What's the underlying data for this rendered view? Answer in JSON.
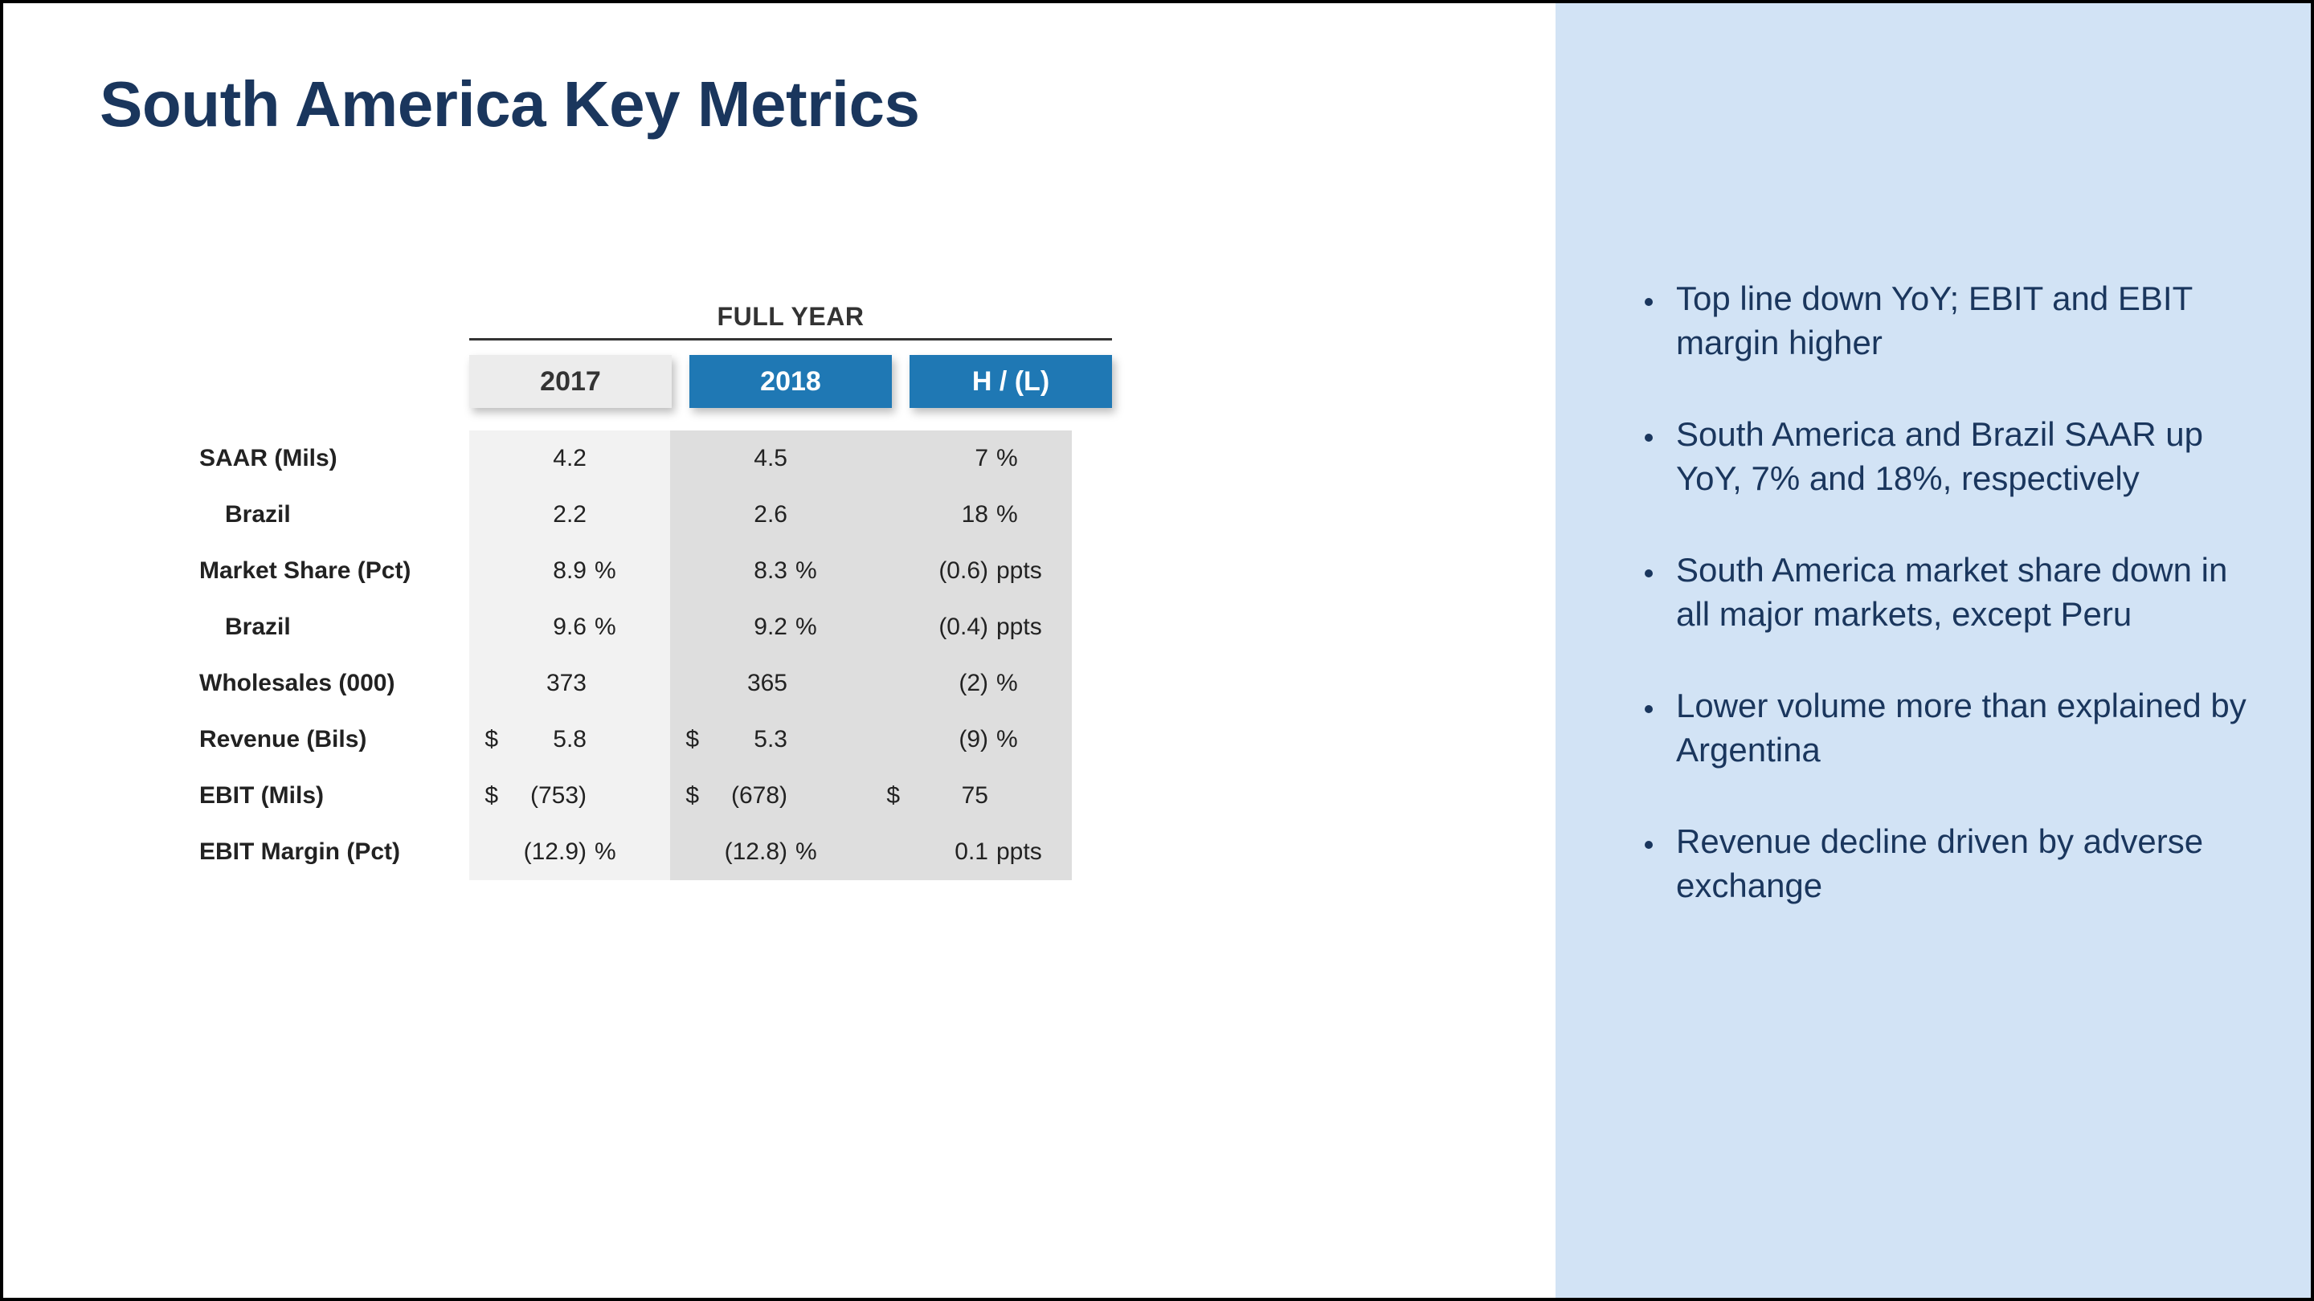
{
  "title": "South America Key Metrics",
  "colors": {
    "title_text": "#1a365d",
    "sidebar_bg": "#d2e3f5",
    "header_light_bg": "#ececec",
    "header_dark_bg": "#1f78b4",
    "header_dark_text": "#ffffff",
    "col_2017_bg": "#f2f2f2",
    "col_2018_bg": "#dedede",
    "col_hl_bg": "#dedede",
    "page_border": "#000000"
  },
  "table": {
    "type": "table",
    "full_year_label": "FULL YEAR",
    "col_headers": [
      "2017",
      "2018",
      "H / (L)"
    ],
    "rows": [
      {
        "label": "SAAR (Mils)",
        "indent": false,
        "c1": {
          "pre": "",
          "num": "4.2",
          "suf": ""
        },
        "c2": {
          "pre": "",
          "num": "4.5",
          "suf": ""
        },
        "c3": {
          "pre": "",
          "num": "7",
          "suf": "%"
        }
      },
      {
        "label": "Brazil",
        "indent": true,
        "c1": {
          "pre": "",
          "num": "2.2",
          "suf": ""
        },
        "c2": {
          "pre": "",
          "num": "2.6",
          "suf": ""
        },
        "c3": {
          "pre": "",
          "num": "18",
          "suf": "%"
        }
      },
      {
        "label": "Market Share (Pct)",
        "indent": false,
        "c1": {
          "pre": "",
          "num": "8.9",
          "suf": "%"
        },
        "c2": {
          "pre": "",
          "num": "8.3",
          "suf": "%"
        },
        "c3": {
          "pre": "",
          "num": "(0.6)",
          "suf": "ppts"
        }
      },
      {
        "label": "Brazil",
        "indent": true,
        "c1": {
          "pre": "",
          "num": "9.6",
          "suf": "%"
        },
        "c2": {
          "pre": "",
          "num": "9.2",
          "suf": "%"
        },
        "c3": {
          "pre": "",
          "num": "(0.4)",
          "suf": "ppts"
        }
      },
      {
        "label": "Wholesales (000)",
        "indent": false,
        "c1": {
          "pre": "",
          "num": "373",
          "suf": ""
        },
        "c2": {
          "pre": "",
          "num": "365",
          "suf": ""
        },
        "c3": {
          "pre": "",
          "num": "(2)",
          "suf": "%"
        }
      },
      {
        "label": "Revenue (Bils)",
        "indent": false,
        "c1": {
          "pre": "$",
          "num": "5.8",
          "suf": ""
        },
        "c2": {
          "pre": "$",
          "num": "5.3",
          "suf": ""
        },
        "c3": {
          "pre": "",
          "num": "(9)",
          "suf": "%"
        }
      },
      {
        "label": "EBIT (Mils)",
        "indent": false,
        "c1": {
          "pre": "$",
          "num": "(753)",
          "suf": ""
        },
        "c2": {
          "pre": "$",
          "num": "(678)",
          "suf": ""
        },
        "c3": {
          "pre": "$",
          "num": "75",
          "suf": ""
        }
      },
      {
        "label": "EBIT Margin (Pct)",
        "indent": false,
        "c1": {
          "pre": "",
          "num": "(12.9)",
          "suf": "%"
        },
        "c2": {
          "pre": "",
          "num": "(12.8)",
          "suf": "%"
        },
        "c3": {
          "pre": "",
          "num": "0.1",
          "suf": "ppts"
        }
      }
    ]
  },
  "bullets": [
    "Top line down YoY; EBIT and EBIT margin higher",
    "South America and Brazil SAAR up YoY, 7% and 18%, respectively",
    "South America market share down in all major markets, except Peru",
    "Lower volume more than explained by Argentina",
    "Revenue decline driven by adverse exchange"
  ]
}
